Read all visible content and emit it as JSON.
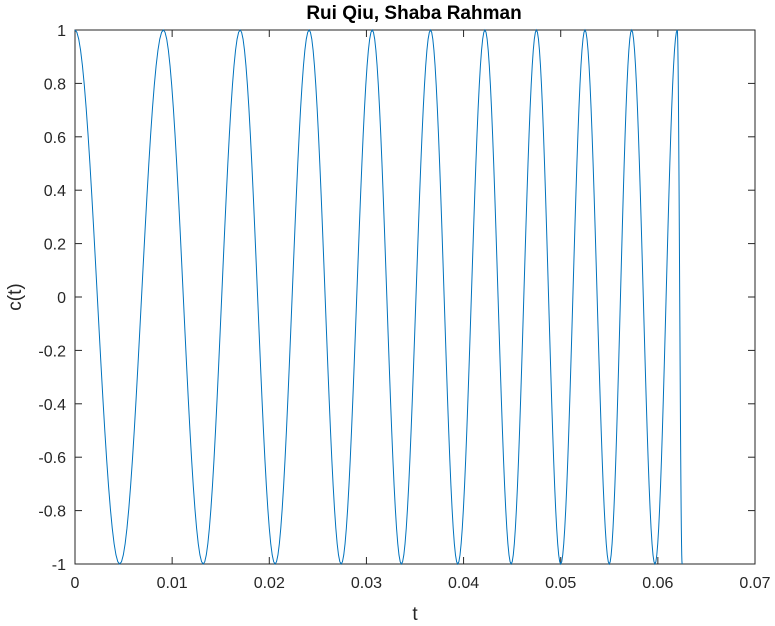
{
  "chart_data": {
    "type": "line",
    "title": "Rui Qiu, Shaba Rahman",
    "xlabel": "t",
    "ylabel": "c(t)",
    "xlim": [
      0,
      0.07
    ],
    "ylim": [
      -1,
      1
    ],
    "x_ticks": [
      "0",
      "0.01",
      "0.02",
      "0.03",
      "0.04",
      "0.05",
      "0.06",
      "0.07"
    ],
    "y_ticks": [
      "-1",
      "-0.8",
      "-0.6",
      "-0.4",
      "-0.2",
      "0",
      "0.2",
      "0.4",
      "0.6",
      "0.8",
      "1"
    ],
    "grid": false,
    "series": [
      {
        "color": "#0072BD",
        "x": [
          0,
          0.0046,
          0.0091,
          0.0132,
          0.017,
          0.0206,
          0.0241,
          0.0274,
          0.0306,
          0.0336,
          0.0366,
          0.0394,
          0.0422,
          0.0449,
          0.0475,
          0.05,
          0.0525,
          0.055,
          0.0573,
          0.0597,
          0.062,
          0.0625
        ],
        "y": [
          1,
          -1,
          1,
          -1,
          1,
          -1,
          1,
          -1,
          1,
          -1,
          1,
          -1,
          1,
          -1,
          1,
          -1,
          1,
          -1,
          1,
          -1,
          1,
          0.59
        ]
      }
    ]
  }
}
